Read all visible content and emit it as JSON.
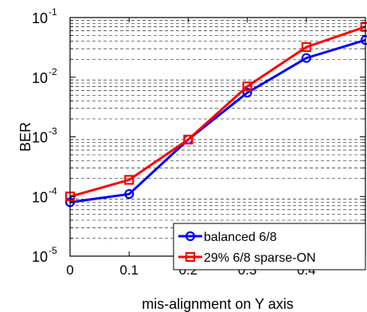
{
  "chart_data": {
    "type": "line",
    "xlabel": "mis-alignment on Y axis",
    "ylabel": "BER",
    "x_ticks": [
      "0",
      "0.1",
      "0.2",
      "0.3",
      "0.4"
    ],
    "y_scale": "log",
    "xlim": [
      0,
      0.5
    ],
    "ylim_exp": [
      -5,
      -1
    ],
    "grid": true,
    "legend_position": "bottom-right",
    "series": [
      {
        "name": "balanced 6/8",
        "color": "#0000ff",
        "marker": "circle",
        "x": [
          0,
          0.1,
          0.2,
          0.3,
          0.4,
          0.5
        ],
        "y": [
          8e-05,
          0.00011,
          0.0009,
          0.0055,
          0.021,
          0.042
        ]
      },
      {
        "name": "29% 6/8 sparse-ON",
        "color": "#ff0000",
        "marker": "square",
        "x": [
          0,
          0.1,
          0.2,
          0.3,
          0.4,
          0.5
        ],
        "y": [
          0.0001,
          0.00019,
          0.0009,
          0.007,
          0.032,
          0.07
        ]
      }
    ]
  }
}
